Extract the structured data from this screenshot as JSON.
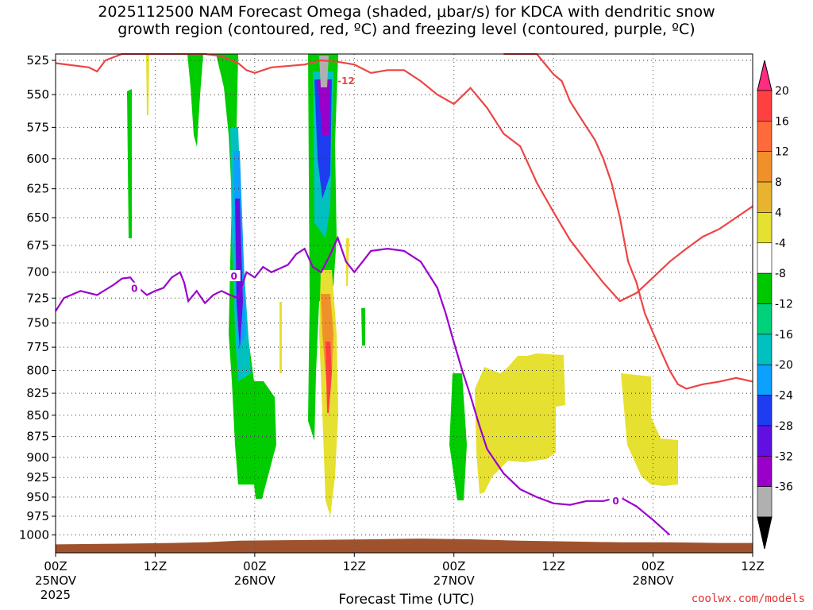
{
  "title_line1": "2025112500 NAM Forecast Omega (shaded, μbar/s) for KDCA with dendritic snow",
  "title_line2": "growth region (contoured, red, ºC) and freezing level (contoured, purple, ºC)",
  "credit": "coolwx.com/models",
  "colors": {
    "dgz": "#ee4444",
    "freezing": "#9b00cc",
    "terrain": "#a0522d",
    "credit": "#e03030"
  },
  "chart_data": {
    "type": "heatmap",
    "title": "2025112500 NAM Forecast Omega (shaded, μbar/s) for KDCA with dendritic snow growth region (contoured, red, ºC) and freezing level (contoured, purple, ºC)",
    "xlabel": "Forecast Time (UTC)",
    "ylabel": "",
    "x_range_hours": [
      0,
      84
    ],
    "y_range_hPa": [
      520,
      1010
    ],
    "y_scale": "log-pressure (inverted)",
    "grid": true,
    "y_ticks": [
      525,
      550,
      575,
      600,
      625,
      650,
      675,
      700,
      725,
      750,
      775,
      800,
      825,
      850,
      875,
      900,
      925,
      950,
      975,
      1000
    ],
    "x_ticks": [
      {
        "hour": 0,
        "label": "00Z",
        "date": "25NOV",
        "year": "2025"
      },
      {
        "hour": 12,
        "label": "12Z",
        "date": "",
        "year": ""
      },
      {
        "hour": 24,
        "label": "00Z",
        "date": "26NOV",
        "year": ""
      },
      {
        "hour": 36,
        "label": "12Z",
        "date": "",
        "year": ""
      },
      {
        "hour": 48,
        "label": "00Z",
        "date": "27NOV",
        "year": ""
      },
      {
        "hour": 60,
        "label": "12Z",
        "date": "",
        "year": ""
      },
      {
        "hour": 72,
        "label": "00Z",
        "date": "28NOV",
        "year": ""
      },
      {
        "hour": 84,
        "label": "12Z",
        "date": "",
        "year": ""
      }
    ],
    "colorbar": {
      "labels": [
        "20",
        "16",
        "12",
        "8",
        "4",
        "-4",
        "-8",
        "-12",
        "-16",
        "-20",
        "-24",
        "-28",
        "-32",
        "-36"
      ],
      "colors": [
        "#ff2d80",
        "#ff4040",
        "#ff6a3a",
        "#f0902a",
        "#e8b430",
        "#e6e030",
        "#ffffff",
        "#00c800",
        "#00d27a",
        "#00c0c0",
        "#0ca0ff",
        "#1e3cf0",
        "#6010e0",
        "#9a00c8",
        "#b0b0b0",
        "#000000"
      ]
    },
    "series": [
      {
        "name": "-12",
        "points": [
          [
            0,
            527
          ],
          [
            4,
            530
          ],
          [
            5,
            533
          ],
          [
            6,
            525
          ],
          [
            8,
            520
          ],
          [
            18,
            520
          ],
          [
            20,
            522
          ],
          [
            22,
            527
          ],
          [
            23,
            532
          ],
          [
            24,
            534
          ],
          [
            26,
            530
          ],
          [
            30,
            528
          ],
          [
            32,
            525
          ],
          [
            34,
            526
          ],
          [
            36,
            528
          ],
          [
            38,
            534
          ],
          [
            40,
            532
          ],
          [
            42,
            532
          ],
          [
            44,
            540
          ],
          [
            46,
            550
          ],
          [
            48,
            557
          ],
          [
            50,
            545
          ],
          [
            52,
            560
          ],
          [
            54,
            580
          ],
          [
            56,
            590
          ],
          [
            58,
            620
          ],
          [
            60,
            645
          ],
          [
            62,
            670
          ],
          [
            64,
            690
          ],
          [
            65,
            700
          ],
          [
            66,
            710
          ],
          [
            68,
            728
          ],
          [
            70,
            720
          ],
          [
            72,
            705
          ],
          [
            74,
            690
          ],
          [
            76,
            678
          ],
          [
            78,
            667
          ],
          [
            80,
            660
          ],
          [
            82,
            650
          ],
          [
            84,
            640
          ]
        ]
      },
      {
        "name": "-12",
        "points": [
          [
            54,
            520
          ],
          [
            58,
            520
          ],
          [
            60,
            535
          ],
          [
            61,
            540
          ],
          [
            62,
            555
          ],
          [
            63,
            565
          ],
          [
            64,
            575
          ],
          [
            65,
            585
          ],
          [
            66,
            600
          ],
          [
            67,
            620
          ],
          [
            68,
            650
          ],
          [
            69,
            690
          ],
          [
            70,
            710
          ],
          [
            71,
            740
          ],
          [
            72,
            760
          ],
          [
            73,
            780
          ],
          [
            74,
            800
          ],
          [
            75,
            815
          ],
          [
            76,
            820
          ],
          [
            78,
            815
          ],
          [
            80,
            812
          ],
          [
            82,
            808
          ],
          [
            84,
            812
          ]
        ]
      },
      {
        "name": "0",
        "points": [
          [
            0,
            738
          ],
          [
            1,
            725
          ],
          [
            3,
            718
          ],
          [
            5,
            722
          ],
          [
            7,
            712
          ],
          [
            8,
            706
          ],
          [
            9,
            705
          ],
          [
            10,
            715
          ],
          [
            11,
            722
          ],
          [
            12,
            718
          ],
          [
            13,
            715
          ],
          [
            14,
            705
          ],
          [
            15,
            700
          ],
          [
            15.5,
            710
          ],
          [
            16,
            728
          ],
          [
            17,
            718
          ],
          [
            18,
            730
          ],
          [
            19,
            722
          ],
          [
            20,
            718
          ],
          [
            21,
            722
          ],
          [
            22,
            725
          ],
          [
            23,
            700
          ],
          [
            24,
            705
          ],
          [
            25,
            695
          ],
          [
            26,
            700
          ],
          [
            28,
            693
          ],
          [
            29,
            683
          ],
          [
            30,
            678
          ],
          [
            31,
            695
          ],
          [
            32,
            700
          ],
          [
            33,
            685
          ],
          [
            34,
            668
          ],
          [
            35,
            690
          ],
          [
            36,
            700
          ],
          [
            37,
            690
          ],
          [
            38,
            680
          ],
          [
            40,
            678
          ],
          [
            42,
            680
          ],
          [
            44,
            690
          ],
          [
            46,
            715
          ],
          [
            47,
            740
          ],
          [
            48,
            770
          ],
          [
            49,
            800
          ],
          [
            50,
            828
          ],
          [
            51,
            860
          ],
          [
            52,
            890
          ],
          [
            54,
            920
          ],
          [
            56,
            940
          ],
          [
            58,
            950
          ],
          [
            60,
            958
          ],
          [
            62,
            960
          ],
          [
            64,
            955
          ],
          [
            66,
            955
          ],
          [
            68,
            950
          ],
          [
            70,
            962
          ],
          [
            72,
            980
          ],
          [
            74,
            1000
          ]
        ]
      }
    ]
  }
}
